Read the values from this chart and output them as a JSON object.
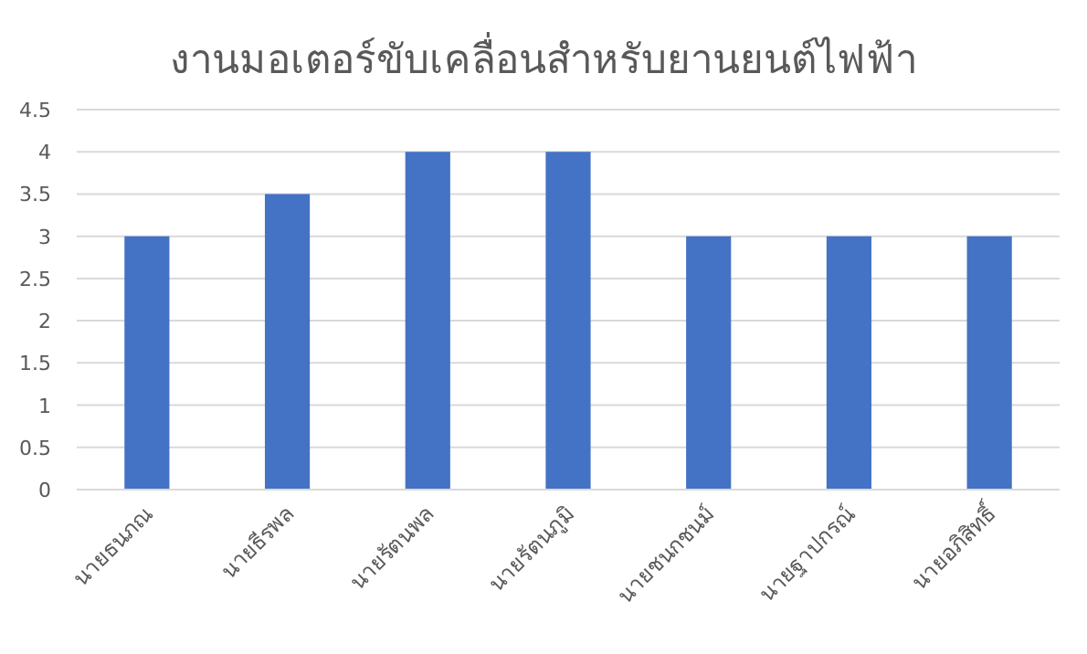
{
  "chart_data": {
    "type": "bar",
    "title": "งานมอเตอร์ขับเคลื่อนสำหรับยานยนต์ไฟฟ้า",
    "categories": [
      "นายธนภณ",
      "นายธีรพล",
      "นายรัตนพล",
      "นายรัตนภูมิ",
      "นายชนกชนม์",
      "นายฐาปกรณ์",
      "นายอภิสิทธิ์"
    ],
    "values": [
      3,
      3.5,
      4,
      4,
      3,
      3,
      3
    ],
    "color": "#4472c4",
    "ylim": [
      0,
      4.5
    ],
    "yticks": [
      0,
      0.5,
      1,
      1.5,
      2,
      2.5,
      3,
      3.5,
      4,
      4.5
    ],
    "grid": "y"
  }
}
